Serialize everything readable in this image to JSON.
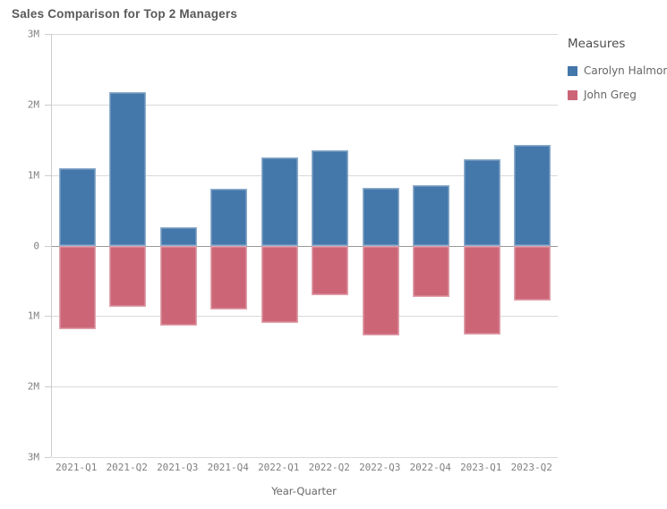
{
  "title": "Sales Comparison for Top 2 Managers",
  "legend": {
    "title": "Measures",
    "items": [
      {
        "label": "Carolyn Halmon",
        "color": "#4477aa"
      },
      {
        "label": "John Greg",
        "color": "#cc6677"
      }
    ]
  },
  "axes": {
    "x_title": "Year-Quarter",
    "y_tick_values": [
      3,
      2,
      1,
      0,
      -1,
      -2,
      -3
    ],
    "y_tick_labels": [
      "3M",
      "2M",
      "1M",
      "0",
      "1M",
      "2M",
      "3M"
    ]
  },
  "colors": {
    "bar_blue": "#4477aa",
    "bar_pink": "#cc6677",
    "gridline": "#d9d9d9",
    "zero_line": "#999999",
    "axis_line": "#cccccc",
    "tick_label": "#808080",
    "title_text": "#595959"
  },
  "chart_data": {
    "type": "bar",
    "subtype": "diverging-vertical",
    "title": "Sales Comparison for Top 2 Managers",
    "xlabel": "Year-Quarter",
    "ylabel": "",
    "y_unit": "millions",
    "ylim": [
      -3,
      3
    ],
    "grid": true,
    "legend_position": "right",
    "legend_title": "Measures",
    "axis_note": "lower half shows John Greg values mirrored below zero; tick labels show absolute values (3M..0..3M)",
    "categories": [
      "2021-Q1",
      "2021-Q2",
      "2021-Q3",
      "2021-Q4",
      "2022-Q1",
      "2022-Q2",
      "2022-Q3",
      "2022-Q4",
      "2023-Q1",
      "2023-Q2"
    ],
    "series": [
      {
        "name": "Carolyn Halmon",
        "color": "#4477aa",
        "direction": "up",
        "values": [
          1.1,
          2.18,
          0.26,
          0.8,
          1.25,
          1.35,
          0.82,
          0.86,
          1.22,
          1.43
        ]
      },
      {
        "name": "John Greg",
        "color": "#cc6677",
        "direction": "down",
        "values": [
          1.19,
          0.87,
          1.14,
          0.91,
          1.1,
          0.7,
          1.28,
          0.73,
          1.26,
          0.78
        ]
      }
    ]
  }
}
